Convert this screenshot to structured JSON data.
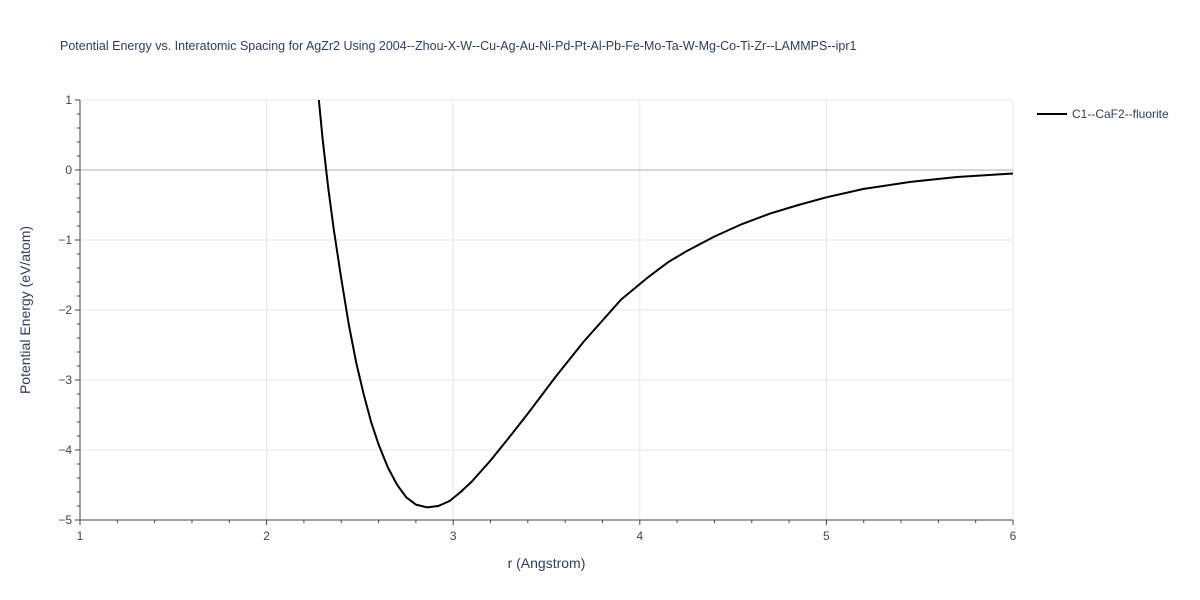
{
  "chart_data": {
    "type": "line",
    "title": "Potential Energy vs. Interatomic Spacing for AgZr2 Using 2004--Zhou-X-W--Cu-Ag-Au-Ni-Pd-Pt-Al-Pb-Fe-Mo-Ta-W-Mg-Co-Ti-Zr--LAMMPS--ipr1",
    "xlabel": "r (Angstrom)",
    "ylabel": "Potential Energy (eV/atom)",
    "xlim": [
      1,
      6
    ],
    "ylim": [
      -5,
      1
    ],
    "xticks": [
      1,
      2,
      3,
      4,
      5,
      6
    ],
    "yticks": [
      -5,
      -4,
      -3,
      -2,
      -1,
      0,
      1
    ],
    "ytick_labels": [
      "−5",
      "−4",
      "−3",
      "−2",
      "−1",
      "0",
      "1"
    ],
    "grid": true,
    "legend_position": "top-right",
    "series": [
      {
        "name": "C1--CaF2--fluorite",
        "color": "#000000",
        "x": [
          2.28,
          2.3,
          2.33,
          2.36,
          2.4,
          2.44,
          2.48,
          2.52,
          2.56,
          2.6,
          2.65,
          2.7,
          2.75,
          2.8,
          2.86,
          2.92,
          2.98,
          3.04,
          3.1,
          3.2,
          3.3,
          3.4,
          3.55,
          3.7,
          3.9,
          4.05,
          4.15,
          4.25,
          4.4,
          4.55,
          4.7,
          4.85,
          5.0,
          5.2,
          5.45,
          5.7,
          6.0
        ],
        "y": [
          1.0,
          0.45,
          -0.25,
          -0.85,
          -1.55,
          -2.2,
          -2.75,
          -3.2,
          -3.6,
          -3.92,
          -4.25,
          -4.5,
          -4.68,
          -4.78,
          -4.82,
          -4.8,
          -4.73,
          -4.6,
          -4.45,
          -4.15,
          -3.82,
          -3.48,
          -2.95,
          -2.45,
          -1.85,
          -1.52,
          -1.32,
          -1.16,
          -0.95,
          -0.77,
          -0.62,
          -0.5,
          -0.39,
          -0.27,
          -0.17,
          -0.1,
          -0.05
        ]
      }
    ]
  }
}
